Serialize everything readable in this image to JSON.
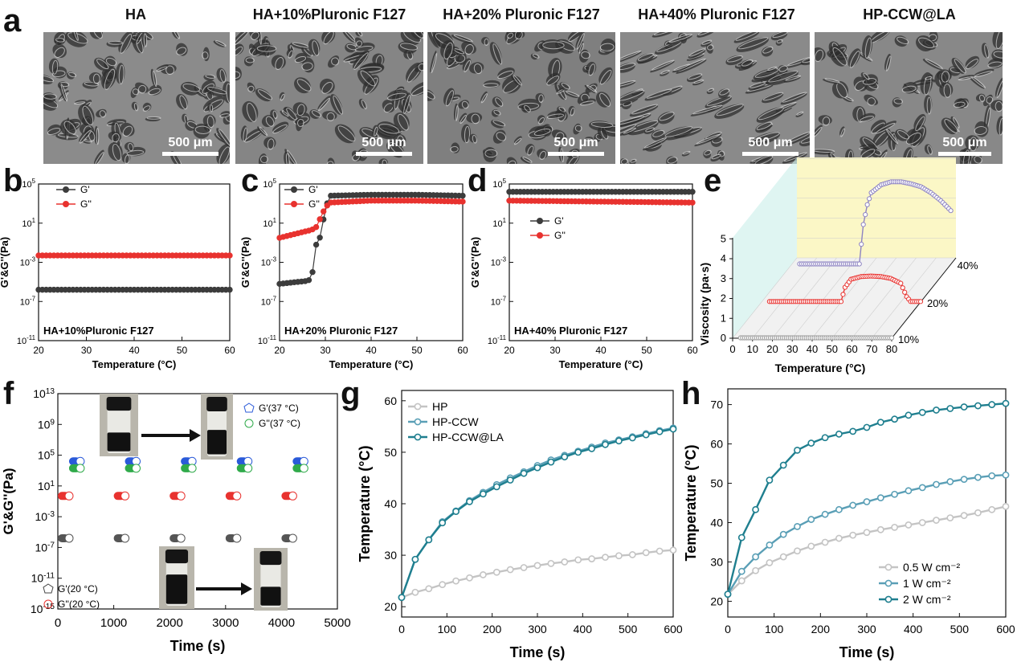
{
  "panel_letters": {
    "a": "a",
    "b": "b",
    "c": "c",
    "d": "d",
    "e": "e",
    "f": "f",
    "g": "g",
    "h": "h"
  },
  "sem_images": [
    {
      "title": "HA",
      "scale": "500 μm",
      "tone": "#8b8b8b"
    },
    {
      "title": "HA+10%Pluronic F127",
      "scale": "500 μm",
      "tone": "#858585"
    },
    {
      "title": "HA+20% Pluronic F127",
      "scale": "500 μm",
      "tone": "#7f7f7f"
    },
    {
      "title": "HA+40% Pluronic F127",
      "scale": "500 μm",
      "tone": "#8a8a8a"
    },
    {
      "title": "HP-CCW@LA",
      "scale": "500 μm",
      "tone": "#888888"
    }
  ],
  "colors": {
    "g1": "#3c3c3c",
    "g2": "#e8322f",
    "teal": "#1f7f8f",
    "teal_mid": "#5a9fb6",
    "grey_line": "#c4c4c4",
    "blue": "#2a5ad9",
    "green": "#2faa4a",
    "purple": "#8e84c2",
    "yellow_wall": "#fbf7c6",
    "cyan_wall": "#c9eeea"
  },
  "chart_data": [
    {
      "id": "b",
      "type": "line",
      "title": "HA+10%Pluronic F127",
      "xlabel": "Temperature (°C)",
      "ylabel": "G'&G''(Pa)",
      "xlim": [
        20,
        60
      ],
      "xticks": [
        20,
        30,
        40,
        50,
        60
      ],
      "yscale": "log",
      "ylim": [
        -11,
        5
      ],
      "yticks": [
        "10^-11",
        "10^-7",
        "10^-3",
        "10^1",
        "10^5"
      ],
      "series": [
        {
          "name": "G'",
          "values_log10_at": {
            "x": [
              20,
              60
            ],
            "y": [
              -5.8,
              -5.8
            ]
          }
        },
        {
          "name": "G''",
          "values_log10_at": {
            "x": [
              20,
              60
            ],
            "y": [
              -2.3,
              -2.3
            ]
          }
        }
      ]
    },
    {
      "id": "c",
      "type": "line",
      "title": "HA+20% Pluronic F127",
      "xlabel": "Temperature (°C)",
      "ylabel": "G'&G''(Pa)",
      "xlim": [
        20,
        60
      ],
      "xticks": [
        20,
        30,
        40,
        50,
        60
      ],
      "yscale": "log",
      "ylim": [
        -11,
        5
      ],
      "yticks": [
        "10^-11",
        "10^-7",
        "10^-3",
        "10^1",
        "10^5"
      ],
      "series": [
        {
          "name": "G'",
          "x": [
            20,
            26,
            27,
            28,
            29,
            30,
            31,
            40,
            50,
            60
          ],
          "y": [
            -5.2,
            -4.9,
            -4.7,
            -1.2,
            -0.3,
            2.5,
            3.8,
            3.9,
            3.9,
            3.8
          ]
        },
        {
          "name": "G''",
          "x": [
            20,
            26,
            27,
            28,
            29,
            30,
            31,
            40,
            50,
            60
          ],
          "y": [
            -0.5,
            0.2,
            0.3,
            0.6,
            1.6,
            2.6,
            3.1,
            3.3,
            3.3,
            3.2
          ]
        }
      ]
    },
    {
      "id": "d",
      "type": "line",
      "title": "HA+40% Pluronic F127",
      "xlabel": "Temperature (°C)",
      "ylabel": "G'&G''(Pa)",
      "xlim": [
        20,
        60
      ],
      "xticks": [
        20,
        30,
        40,
        50,
        60
      ],
      "yscale": "log",
      "ylim": [
        -11,
        5
      ],
      "yticks": [
        "10^-11",
        "10^-7",
        "10^-3",
        "10^1",
        "10^5"
      ],
      "series": [
        {
          "name": "G'",
          "x": [
            20,
            60
          ],
          "y": [
            4.2,
            4.2
          ]
        },
        {
          "name": "G''",
          "x": [
            20,
            60
          ],
          "y": [
            3.3,
            3.1
          ]
        }
      ]
    },
    {
      "id": "e",
      "type": "line3d",
      "xlabel": "Temperature (°C)",
      "ylabel": "Viscosity (pa·s)",
      "xlim": [
        0,
        80
      ],
      "xticks": [
        0,
        10,
        20,
        30,
        40,
        50,
        60,
        70,
        80
      ],
      "ylim": [
        0,
        5
      ],
      "yticks": [
        0,
        1,
        2,
        3,
        4,
        5
      ],
      "zticks": [
        "10%",
        "20%",
        "40%"
      ],
      "series": [
        {
          "name": "10%",
          "x": [
            4,
            80
          ],
          "y": [
            0.02,
            0.02
          ]
        },
        {
          "name": "20%",
          "x": [
            4,
            40,
            42,
            45,
            50,
            55,
            60,
            65,
            70,
            73,
            75,
            80
          ],
          "y": [
            0.02,
            0.02,
            0.55,
            0.85,
            0.95,
            0.97,
            0.95,
            0.88,
            0.7,
            0.2,
            0.02,
            0.02
          ]
        },
        {
          "name": "40%",
          "x": [
            4,
            34,
            36,
            38,
            40,
            45,
            50,
            55,
            60,
            65,
            70,
            75,
            80
          ],
          "y": [
            0.02,
            0.02,
            2.0,
            3.0,
            3.6,
            4.0,
            4.15,
            4.15,
            4.05,
            3.9,
            3.6,
            3.2,
            2.7
          ]
        }
      ]
    },
    {
      "id": "f",
      "type": "scatter",
      "xlabel": "Time (s)",
      "ylabel": "G'&G''(Pa)",
      "xlim": [
        0,
        5000
      ],
      "xticks": [
        0,
        1000,
        2000,
        3000,
        4000,
        5000
      ],
      "yscale": "log",
      "ylim": [
        -15,
        13
      ],
      "yticks": [
        "10^-15",
        "10^-11",
        "10^-7",
        "10^-3",
        "10^1",
        "10^5",
        "10^9",
        "10^13"
      ],
      "series": [
        {
          "name": "G'(37 °C)",
          "x": [
            200,
            1200,
            2200,
            3200,
            4200
          ],
          "y": [
            4.2,
            4.2,
            4.2,
            4.2,
            4.2
          ]
        },
        {
          "name": "G''(37 °C)",
          "x": [
            200,
            1200,
            2200,
            3200,
            4200
          ],
          "y": [
            3.3,
            3.3,
            3.3,
            3.3,
            3.3
          ]
        },
        {
          "name": "G'(20 °C)",
          "x": [
            0,
            1000,
            2000,
            3000,
            4000
          ],
          "y": [
            -5.8,
            -5.8,
            -5.8,
            -5.8,
            -5.8
          ]
        },
        {
          "name": "G''(20 °C)",
          "x": [
            0,
            1000,
            2000,
            3000,
            4000
          ],
          "y": [
            -0.3,
            -0.3,
            -0.3,
            -0.3,
            -0.3
          ]
        }
      ]
    },
    {
      "id": "g",
      "type": "line",
      "xlabel": "Time (s)",
      "ylabel": "Temperature (°C)",
      "xlim": [
        0,
        600
      ],
      "xticks": [
        0,
        100,
        200,
        300,
        400,
        500,
        600
      ],
      "ylim": [
        18,
        62
      ],
      "yticks": [
        20,
        30,
        40,
        50,
        60
      ],
      "series": [
        {
          "name": "HP",
          "x": [
            0,
            30,
            60,
            90,
            120,
            150,
            180,
            210,
            240,
            270,
            300,
            330,
            360,
            390,
            420,
            450,
            480,
            510,
            540,
            570,
            600
          ],
          "y": [
            21.8,
            22.8,
            23.5,
            24.3,
            25.0,
            25.6,
            26.2,
            26.7,
            27.2,
            27.6,
            28.0,
            28.4,
            28.7,
            29.1,
            29.3,
            29.6,
            29.9,
            30.1,
            30.5,
            30.8,
            31.0
          ]
        },
        {
          "name": "HP-CCW",
          "x": [
            0,
            30,
            60,
            90,
            120,
            150,
            180,
            210,
            240,
            270,
            300,
            330,
            360,
            390,
            420,
            450,
            480,
            510,
            540,
            570,
            600
          ],
          "y": [
            21.8,
            29.2,
            33.0,
            36.5,
            38.6,
            40.6,
            42.2,
            43.7,
            45.0,
            46.2,
            47.4,
            48.5,
            49.4,
            50.2,
            51.0,
            51.8,
            52.4,
            53.0,
            53.6,
            54.2,
            54.7
          ]
        },
        {
          "name": "HP-CCW@LA",
          "x": [
            0,
            30,
            60,
            90,
            120,
            150,
            180,
            210,
            240,
            270,
            300,
            330,
            360,
            390,
            420,
            450,
            480,
            510,
            540,
            570,
            600
          ],
          "y": [
            21.8,
            29.2,
            33.0,
            36.3,
            38.5,
            40.4,
            41.9,
            43.3,
            44.6,
            45.9,
            47.0,
            48.1,
            49.1,
            50.0,
            50.7,
            51.5,
            52.2,
            52.8,
            53.4,
            54.0,
            54.5
          ]
        }
      ]
    },
    {
      "id": "h",
      "type": "line",
      "xlabel": "Time (s)",
      "ylabel": "Temperature (°C)",
      "xlim": [
        0,
        600
      ],
      "xticks": [
        0,
        100,
        200,
        300,
        400,
        500,
        600
      ],
      "ylim": [
        16,
        74
      ],
      "yticks": [
        20,
        30,
        40,
        50,
        60,
        70
      ],
      "series": [
        {
          "name": "0.5 W cm⁻²",
          "x": [
            0,
            30,
            60,
            90,
            120,
            150,
            180,
            210,
            240,
            270,
            300,
            330,
            360,
            390,
            420,
            450,
            480,
            510,
            540,
            570,
            600
          ],
          "y": [
            21.8,
            25.2,
            27.8,
            29.8,
            31.3,
            32.8,
            34.0,
            35.0,
            36.0,
            36.8,
            37.5,
            38.2,
            38.8,
            39.4,
            40.0,
            40.6,
            41.2,
            41.8,
            42.5,
            43.3,
            44.1
          ]
        },
        {
          "name": "1 W cm⁻²",
          "x": [
            0,
            30,
            60,
            90,
            120,
            150,
            180,
            210,
            240,
            270,
            300,
            330,
            360,
            390,
            420,
            450,
            480,
            510,
            540,
            570,
            600
          ],
          "y": [
            21.8,
            27.6,
            31.3,
            34.3,
            37.0,
            39.0,
            40.8,
            42.1,
            43.3,
            44.4,
            45.3,
            46.3,
            47.2,
            48.1,
            48.9,
            49.7,
            50.4,
            51.0,
            51.5,
            51.9,
            52.1
          ]
        },
        {
          "name": "2 W cm⁻²",
          "x": [
            0,
            30,
            60,
            90,
            120,
            150,
            180,
            210,
            240,
            270,
            300,
            330,
            360,
            390,
            420,
            450,
            480,
            510,
            540,
            570,
            600
          ],
          "y": [
            21.8,
            36.2,
            43.3,
            50.8,
            54.6,
            58.4,
            60.2,
            61.6,
            62.5,
            63.2,
            64.2,
            65.5,
            66.3,
            67.3,
            68.0,
            68.6,
            69.0,
            69.4,
            69.7,
            70.0,
            70.3
          ]
        }
      ]
    }
  ]
}
